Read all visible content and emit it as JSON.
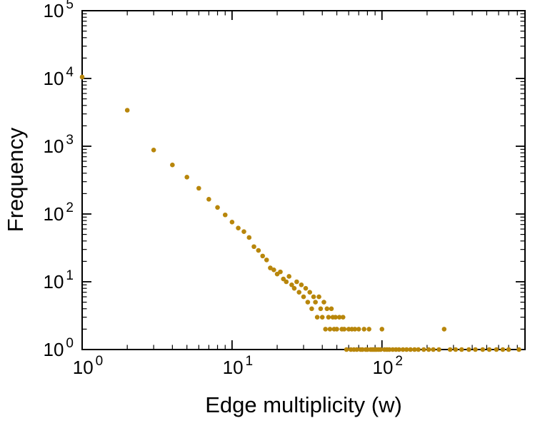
{
  "chart_data": {
    "type": "scatter",
    "title": "",
    "xlabel": "Edge multiplicity (w)",
    "ylabel": "Frequency",
    "xscale": "log",
    "yscale": "log",
    "xlim": [
      1,
      900
    ],
    "ylim": [
      1,
      100000
    ],
    "grid": false,
    "legend": "none",
    "marker_color": "#B8860B",
    "frame_color": "#000000",
    "x_ticks": [
      {
        "base": "10",
        "exp": "0",
        "value": 1
      },
      {
        "base": "10",
        "exp": "1",
        "value": 10
      },
      {
        "base": "10",
        "exp": "2",
        "value": 100
      }
    ],
    "y_ticks": [
      {
        "base": "10",
        "exp": "0",
        "value": 1
      },
      {
        "base": "10",
        "exp": "1",
        "value": 10
      },
      {
        "base": "10",
        "exp": "2",
        "value": 100
      },
      {
        "base": "10",
        "exp": "3",
        "value": 1000
      },
      {
        "base": "10",
        "exp": "4",
        "value": 10000
      },
      {
        "base": "10",
        "exp": "5",
        "value": 100000
      }
    ],
    "points": [
      [
        1,
        10500
      ],
      [
        2,
        3400
      ],
      [
        3,
        880
      ],
      [
        4,
        530
      ],
      [
        5,
        350
      ],
      [
        6,
        240
      ],
      [
        7,
        165
      ],
      [
        8,
        125
      ],
      [
        9,
        97
      ],
      [
        10,
        76
      ],
      [
        11,
        62
      ],
      [
        12,
        55
      ],
      [
        13,
        45
      ],
      [
        14,
        33
      ],
      [
        15,
        29
      ],
      [
        16,
        24
      ],
      [
        17,
        21
      ],
      [
        18,
        16
      ],
      [
        19,
        15
      ],
      [
        20,
        13
      ],
      [
        21,
        14
      ],
      [
        22,
        11
      ],
      [
        23,
        10
      ],
      [
        24,
        12
      ],
      [
        25,
        9
      ],
      [
        26,
        8
      ],
      [
        27,
        10
      ],
      [
        28,
        7
      ],
      [
        29,
        9
      ],
      [
        30,
        6
      ],
      [
        31,
        8
      ],
      [
        32,
        5
      ],
      [
        33,
        7
      ],
      [
        34,
        4
      ],
      [
        35,
        6
      ],
      [
        36,
        5
      ],
      [
        37,
        3
      ],
      [
        38,
        6
      ],
      [
        39,
        4
      ],
      [
        40,
        3
      ],
      [
        41,
        5
      ],
      [
        42,
        2
      ],
      [
        43,
        4
      ],
      [
        44,
        3
      ],
      [
        45,
        2
      ],
      [
        46,
        4
      ],
      [
        47,
        3
      ],
      [
        48,
        2
      ],
      [
        49,
        3
      ],
      [
        50,
        2
      ],
      [
        52,
        3
      ],
      [
        54,
        2
      ],
      [
        55,
        3
      ],
      [
        56,
        2
      ],
      [
        58,
        1
      ],
      [
        60,
        2
      ],
      [
        62,
        1
      ],
      [
        63,
        2
      ],
      [
        65,
        1
      ],
      [
        66,
        2
      ],
      [
        68,
        1
      ],
      [
        70,
        2
      ],
      [
        72,
        1
      ],
      [
        74,
        1
      ],
      [
        76,
        2
      ],
      [
        78,
        1
      ],
      [
        80,
        1
      ],
      [
        82,
        2
      ],
      [
        84,
        1
      ],
      [
        86,
        1
      ],
      [
        88,
        1
      ],
      [
        90,
        1
      ],
      [
        92,
        1
      ],
      [
        95,
        1
      ],
      [
        98,
        1
      ],
      [
        100,
        2
      ],
      [
        104,
        1
      ],
      [
        108,
        1
      ],
      [
        112,
        1
      ],
      [
        118,
        1
      ],
      [
        124,
        1
      ],
      [
        130,
        1
      ],
      [
        138,
        1
      ],
      [
        146,
        1
      ],
      [
        155,
        1
      ],
      [
        165,
        1
      ],
      [
        175,
        1
      ],
      [
        190,
        1
      ],
      [
        205,
        1
      ],
      [
        220,
        1
      ],
      [
        240,
        1
      ],
      [
        260,
        2
      ],
      [
        285,
        1
      ],
      [
        310,
        1
      ],
      [
        340,
        1
      ],
      [
        380,
        1
      ],
      [
        420,
        1
      ],
      [
        470,
        1
      ],
      [
        520,
        1
      ],
      [
        580,
        1
      ],
      [
        640,
        1
      ],
      [
        700,
        1
      ],
      [
        820,
        1
      ]
    ]
  }
}
